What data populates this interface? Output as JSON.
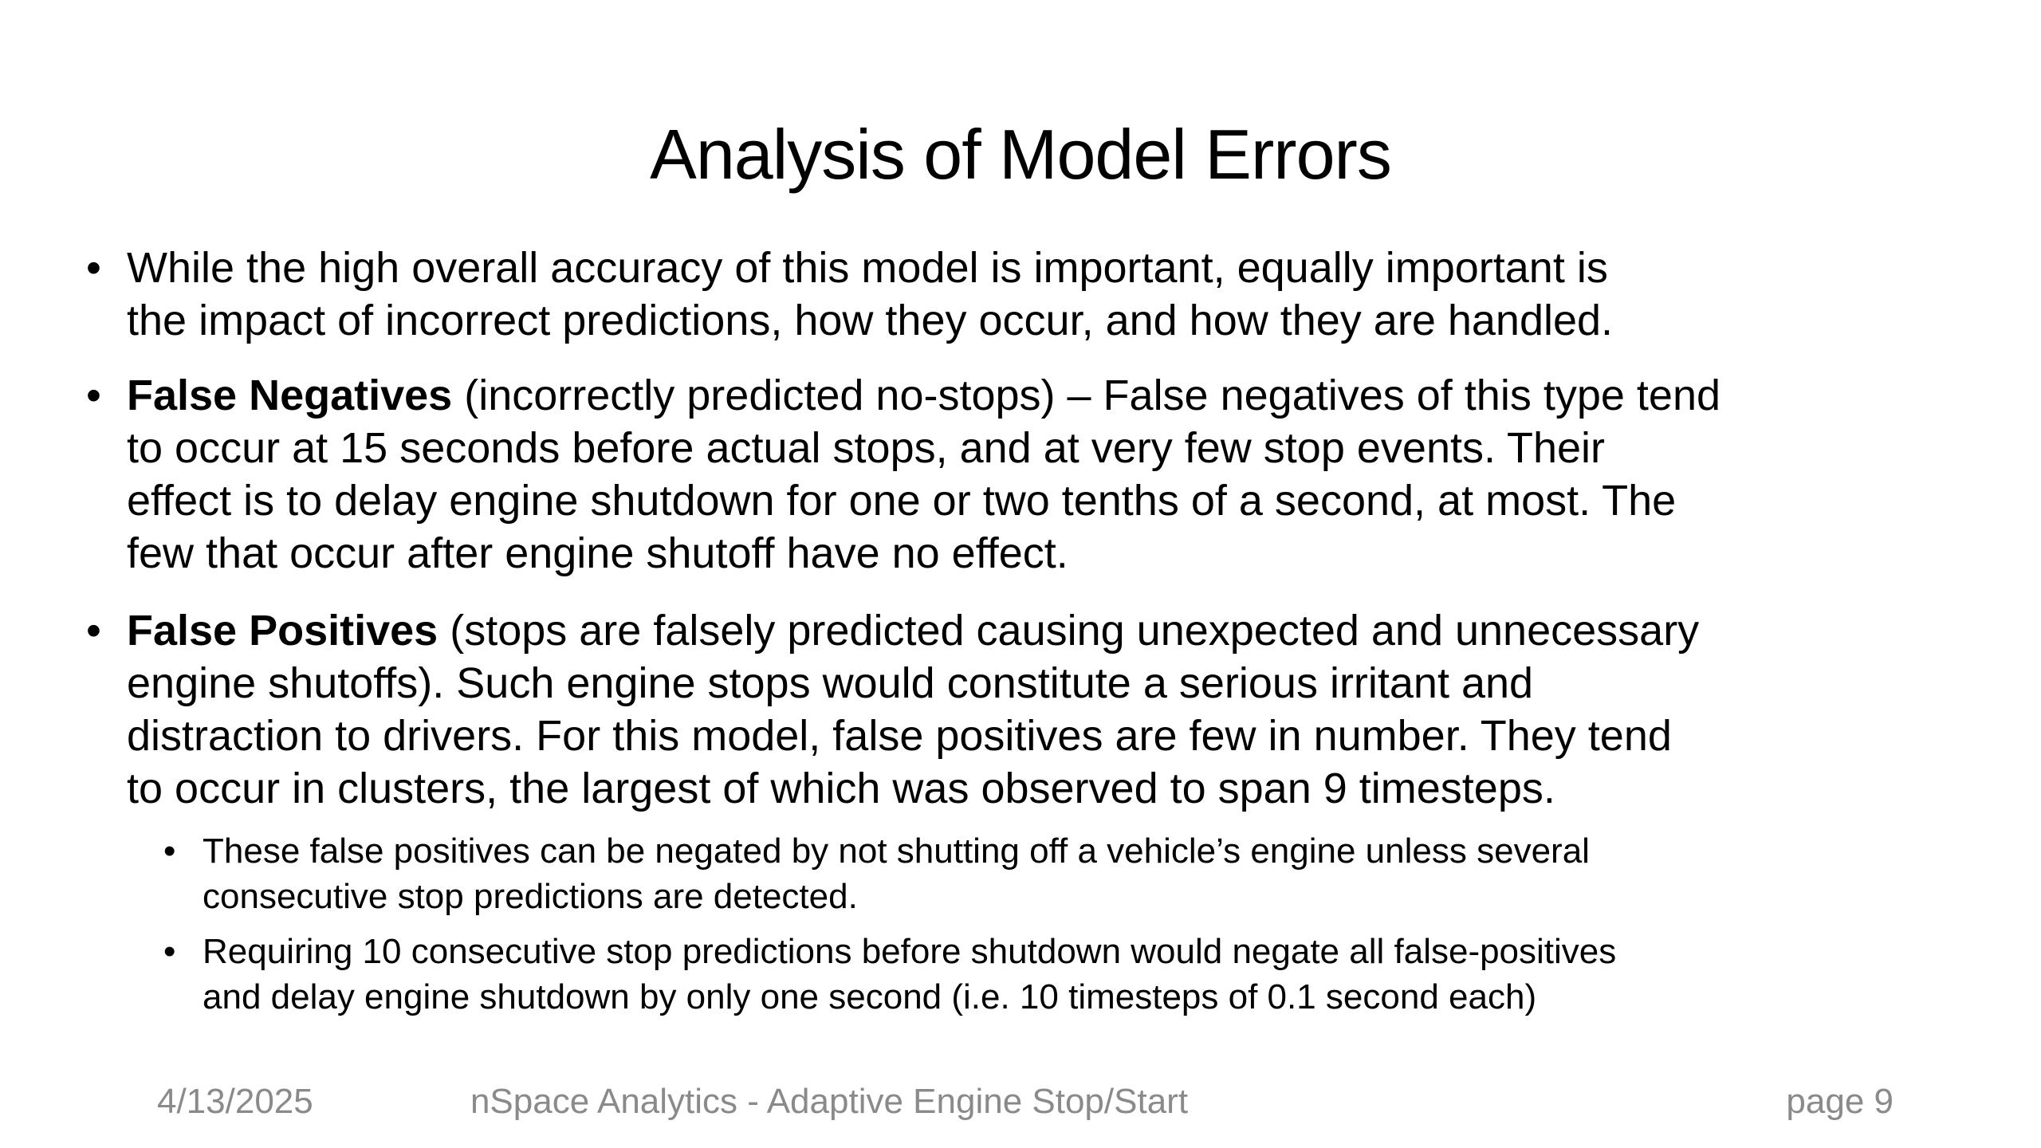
{
  "slide": {
    "title": "Analysis of Model Errors",
    "bullets": [
      {
        "bold": "",
        "lines": [
          "While the high overall accuracy of this model is important, equally important is",
          "the impact of incorrect predictions, how they occur, and how they are handled."
        ]
      },
      {
        "bold": "False Negatives",
        "lines": [
          " (incorrectly predicted no-stops) – False negatives of this type tend",
          "to occur at 15 seconds before actual stops, and at very few stop events. Their",
          "effect is to delay engine shutdown for one or two tenths of a second, at most.  The",
          "few that occur after engine shutoff have no effect."
        ]
      },
      {
        "bold": "False Positives",
        "lines": [
          " (stops are falsely predicted causing unexpected and unnecessary",
          "engine shutoffs).  Such engine stops would constitute a serious irritant and",
          "distraction to drivers.  For this model, false positives are few in number.  They tend",
          "to occur in clusters, the largest of which was observed to span 9 timesteps."
        ]
      }
    ],
    "sub_bullets": [
      {
        "lines": [
          "These false positives can be negated by not shutting off a vehicle’s engine unless several",
          "consecutive stop predictions are detected."
        ]
      },
      {
        "lines": [
          "Requiring 10 consecutive stop predictions before shutdown would negate all false-positives",
          "and delay engine shutdown by only one second (i.e.  10 timesteps  of 0.1 second each)"
        ]
      }
    ],
    "bullet_char": "•"
  },
  "footer": {
    "date": "4/13/2025",
    "center": "nSpace  Analytics - Adaptive Engine Stop/Start",
    "page": "page 9"
  }
}
